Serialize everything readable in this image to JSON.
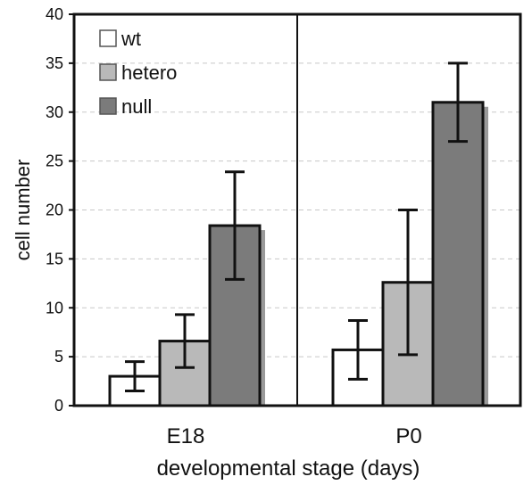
{
  "chart_data": {
    "type": "bar",
    "categories": [
      "E18",
      "P0"
    ],
    "series": [
      {
        "name": "wt",
        "color": "#ffffff",
        "values": [
          3.0,
          5.7
        ],
        "error": [
          1.5,
          3.0
        ]
      },
      {
        "name": "hetero",
        "color": "#b9b9b9",
        "values": [
          6.6,
          12.6
        ],
        "error": [
          2.7,
          7.4
        ]
      },
      {
        "name": "null",
        "color": "#7b7b7b",
        "values": [
          18.4,
          31.0
        ],
        "error": [
          5.5,
          4.0
        ]
      }
    ],
    "title": "",
    "xlabel": "developmental stage (days)",
    "ylabel": "cell number",
    "ylim": [
      0,
      40
    ],
    "yticks": [
      0,
      5,
      10,
      15,
      20,
      25,
      30,
      35,
      40
    ],
    "grid": "horizontal-dashed",
    "legend": "top-left",
    "divider_between_categories": true,
    "bar_shadow_color": "#9a9a9a"
  }
}
